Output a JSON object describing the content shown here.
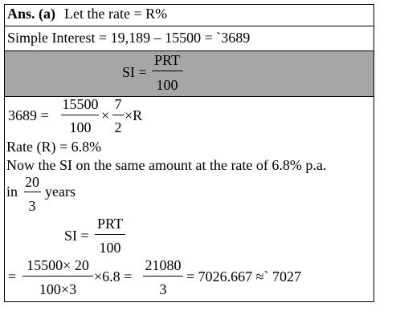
{
  "lines": [
    {
      "label": "Ans. (a)",
      "text": "Let the rate  = R%"
    },
    {
      "text": "Simple Interest  = 19,189 – 15500 = `3689"
    }
  ],
  "formula": {
    "lhs": "SI =",
    "numerator": "PRT",
    "denominator": "100"
  },
  "step1": {
    "lhs": "3689 =",
    "frac1_num": "15500",
    "frac1_den": "100",
    "times": "×",
    "frac2_num": "7",
    "frac2_den": "2",
    "rest": "×R"
  },
  "rate": "Rate  (R) = 6.8%",
  "now": "Now the SI on the same amount at the rate of 6.8% p.a.",
  "period": {
    "prefix": "in",
    "num": "20",
    "den": "3",
    "suffix": "years"
  },
  "formula2": {
    "lhs": "SI =",
    "numerator": "PRT",
    "denominator": "100"
  },
  "final": {
    "eq": "=",
    "num1": "15500× 20",
    "den1": "100×3",
    "mid": "×6.8 =",
    "num2": "21080",
    "den2": "3",
    "end": "= 7026.667 ≈` 7027"
  }
}
